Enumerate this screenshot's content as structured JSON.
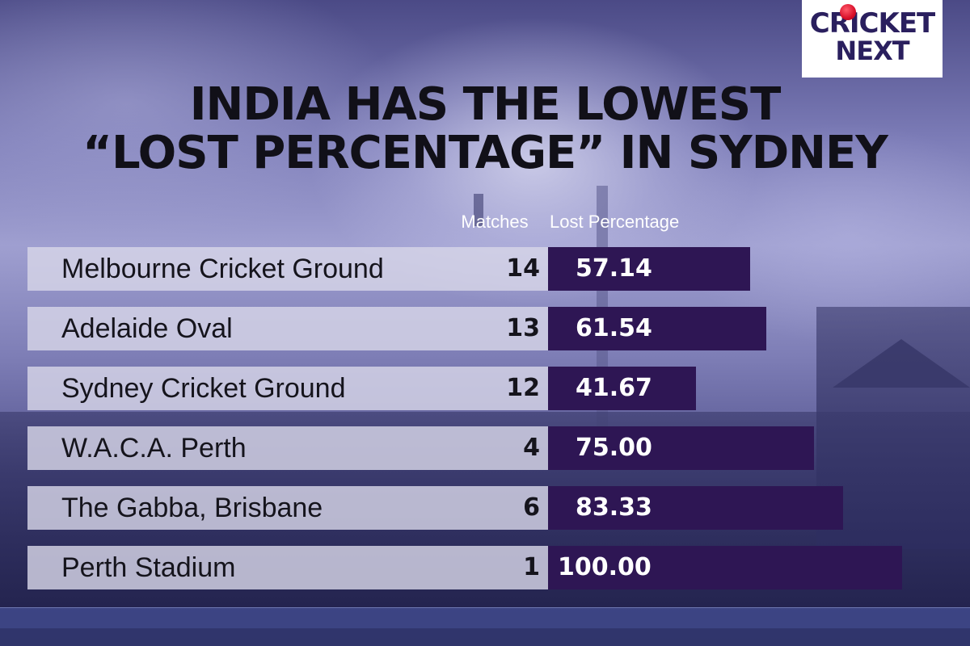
{
  "brand": {
    "line1": "CRICKET",
    "line2": "NEXT",
    "accent_color": "#d8102a",
    "text_color": "#2a1f5e"
  },
  "title": {
    "line1": "INDIA HAS THE LOWEST",
    "line2": "“LOST PERCENTAGE” IN SYDNEY"
  },
  "chart_data": {
    "type": "bar",
    "orientation": "horizontal",
    "title": "INDIA HAS THE LOWEST “LOST PERCENTAGE” IN SYDNEY",
    "columns": [
      "Matches",
      "Lost Percentage"
    ],
    "categories": [
      "Melbourne Cricket Ground",
      "Adelaide Oval",
      "Sydney Cricket Ground",
      "W.A.C.A. Perth",
      "The Gabba, Brisbane",
      "Perth Stadium"
    ],
    "matches": [
      "14",
      "13",
      "12",
      "4",
      "6",
      "1"
    ],
    "values": [
      57.14,
      61.54,
      41.67,
      75.0,
      83.33,
      100.0
    ],
    "value_labels": [
      "57.14",
      "61.54",
      "41.67",
      "75.00",
      "83.33",
      "100.00"
    ],
    "xlim": [
      0,
      100
    ],
    "bar_color": "#2e1654"
  }
}
